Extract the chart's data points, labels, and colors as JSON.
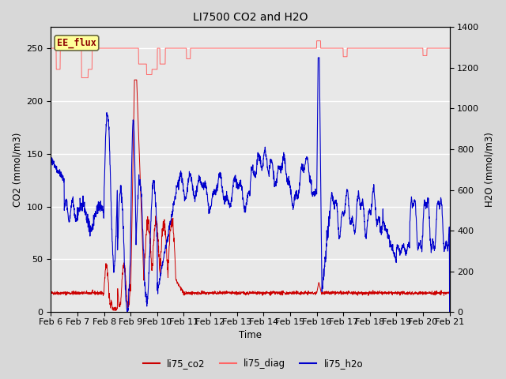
{
  "title": "LI7500 CO2 and H2O",
  "xlabel": "Time",
  "ylabel_left": "CO2 (mmol/m3)",
  "ylabel_right": "H2O (mmol/m3)",
  "ylim_left": [
    0,
    270
  ],
  "ylim_right": [
    0,
    1400
  ],
  "annotation_text": "EE_flux",
  "annotation_color": "#8B0000",
  "annotation_bg": "#FFFF99",
  "fig_bg_color": "#D8D8D8",
  "plot_bg_color": "#E8E8E8",
  "legend_entries": [
    "li75_co2",
    "li75_diag",
    "li75_h2o"
  ],
  "legend_colors": [
    "#CC0000",
    "#FF6666",
    "#0000CC"
  ],
  "tick_labels": [
    "Feb 6",
    "Feb 7",
    "Feb 8",
    "Feb 9",
    "Feb 10",
    "Feb 11",
    "Feb 12",
    "Feb 13",
    "Feb 14",
    "Feb 15",
    "Feb 16",
    "Feb 17",
    "Feb 18",
    "Feb 19",
    "Feb 20",
    "Feb 21"
  ],
  "n_points": 2000,
  "diag_value": 250,
  "co2_base": 18,
  "scale": 0.1929
}
